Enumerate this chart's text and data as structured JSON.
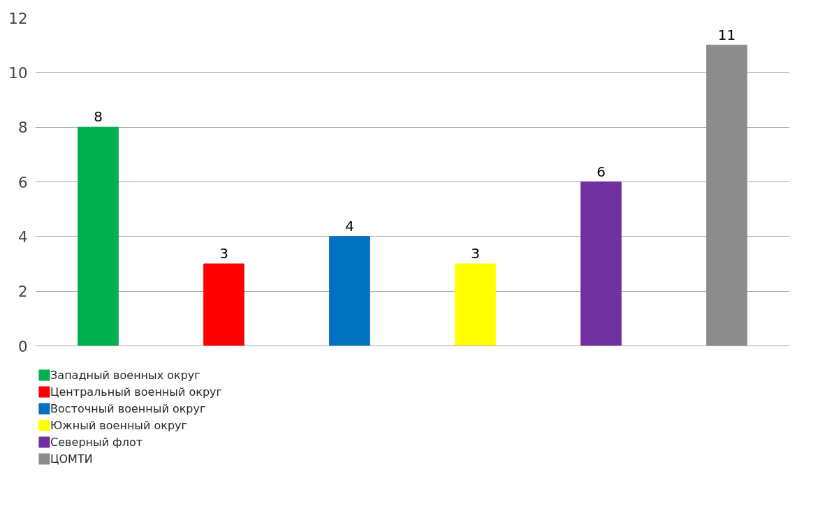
{
  "chart_data": {
    "type": "bar",
    "categories": [
      null,
      null,
      null,
      null,
      null,
      null
    ],
    "series": [
      {
        "name": "Западный военных округ",
        "color": "#00b050",
        "values": [
          8,
          null,
          null,
          null,
          null,
          null
        ]
      },
      {
        "name": "Центральный военный округ",
        "color": "#ff0000",
        "values": [
          null,
          3,
          null,
          null,
          null,
          null
        ]
      },
      {
        "name": "Восточный военный округ",
        "color": "#0070c0",
        "values": [
          null,
          null,
          4,
          null,
          null,
          null
        ]
      },
      {
        "name": "Южный военный округ",
        "color": "#ffff00",
        "values": [
          null,
          null,
          null,
          3,
          null,
          null
        ]
      },
      {
        "name": "Северный флот",
        "color": "#7030a0",
        "values": [
          null,
          null,
          null,
          null,
          6,
          null
        ]
      },
      {
        "name": "ЦОМТИ",
        "color": "#8c8c8c",
        "values": [
          null,
          null,
          null,
          null,
          null,
          11
        ]
      }
    ],
    "ylim": [
      0,
      12
    ],
    "yticks": [
      0,
      2,
      4,
      6,
      8,
      10,
      12
    ],
    "grid": "y",
    "legend": "bottom",
    "data_labels": true
  }
}
